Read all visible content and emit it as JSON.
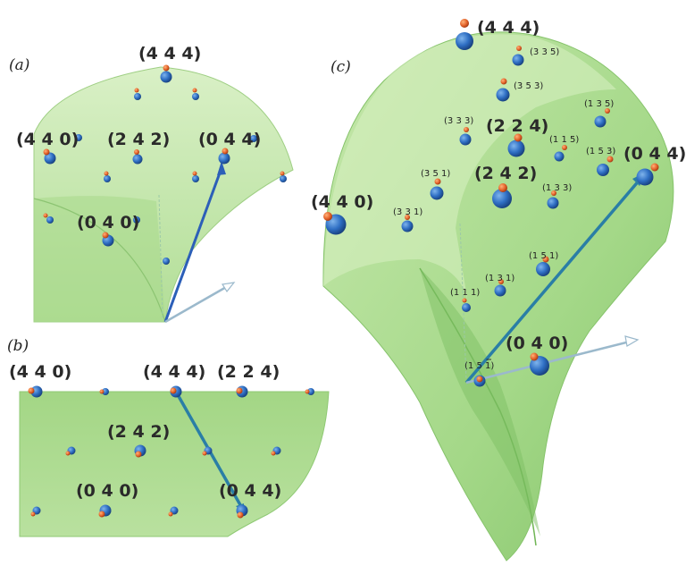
{
  "panels": {
    "a": {
      "label": "(a)",
      "labels": [
        "(4 4 4)",
        "(4 4 0)",
        "(2 4 2)",
        "(0 4 4)",
        "(0 4 0)"
      ]
    },
    "b": {
      "label": "(b)",
      "labels": [
        "(4 4 0)",
        "(4 4 4)",
        "(2 2 4)",
        "(2 4 2)",
        "(0 4 0)",
        "(0 4 4)"
      ]
    },
    "c": {
      "label": "(c)",
      "big_labels": [
        "(4 4 4)",
        "(2 2 4)",
        "(2 4 2)",
        "(0 4 4)",
        "(4 4 0)",
        "(0 4 0)"
      ],
      "small_labels": [
        "(3 3 5)",
        "(3 5 3)",
        "(1 3 5)",
        "(3 3 3)",
        "(1 1 5)",
        "(1 5 3)",
        "(3 5 1)",
        "(1 3 3)",
        "(3 3 1)",
        "(1 5 1)",
        "(1 3 1)",
        "(1 1 1)"
      ],
      "bar_label_prefix": "(1 5 ",
      "bar_label_digit": "1",
      "bar_label_suffix": ")"
    }
  },
  "colors": {
    "surface": "#a9d98f",
    "surface_dark": "#84c46a",
    "blue_atom": "#2f6fc4",
    "orange_atom": "#e3632a",
    "arrow": "#2c5fb8",
    "arrow_outline": "#9bb9cc"
  }
}
